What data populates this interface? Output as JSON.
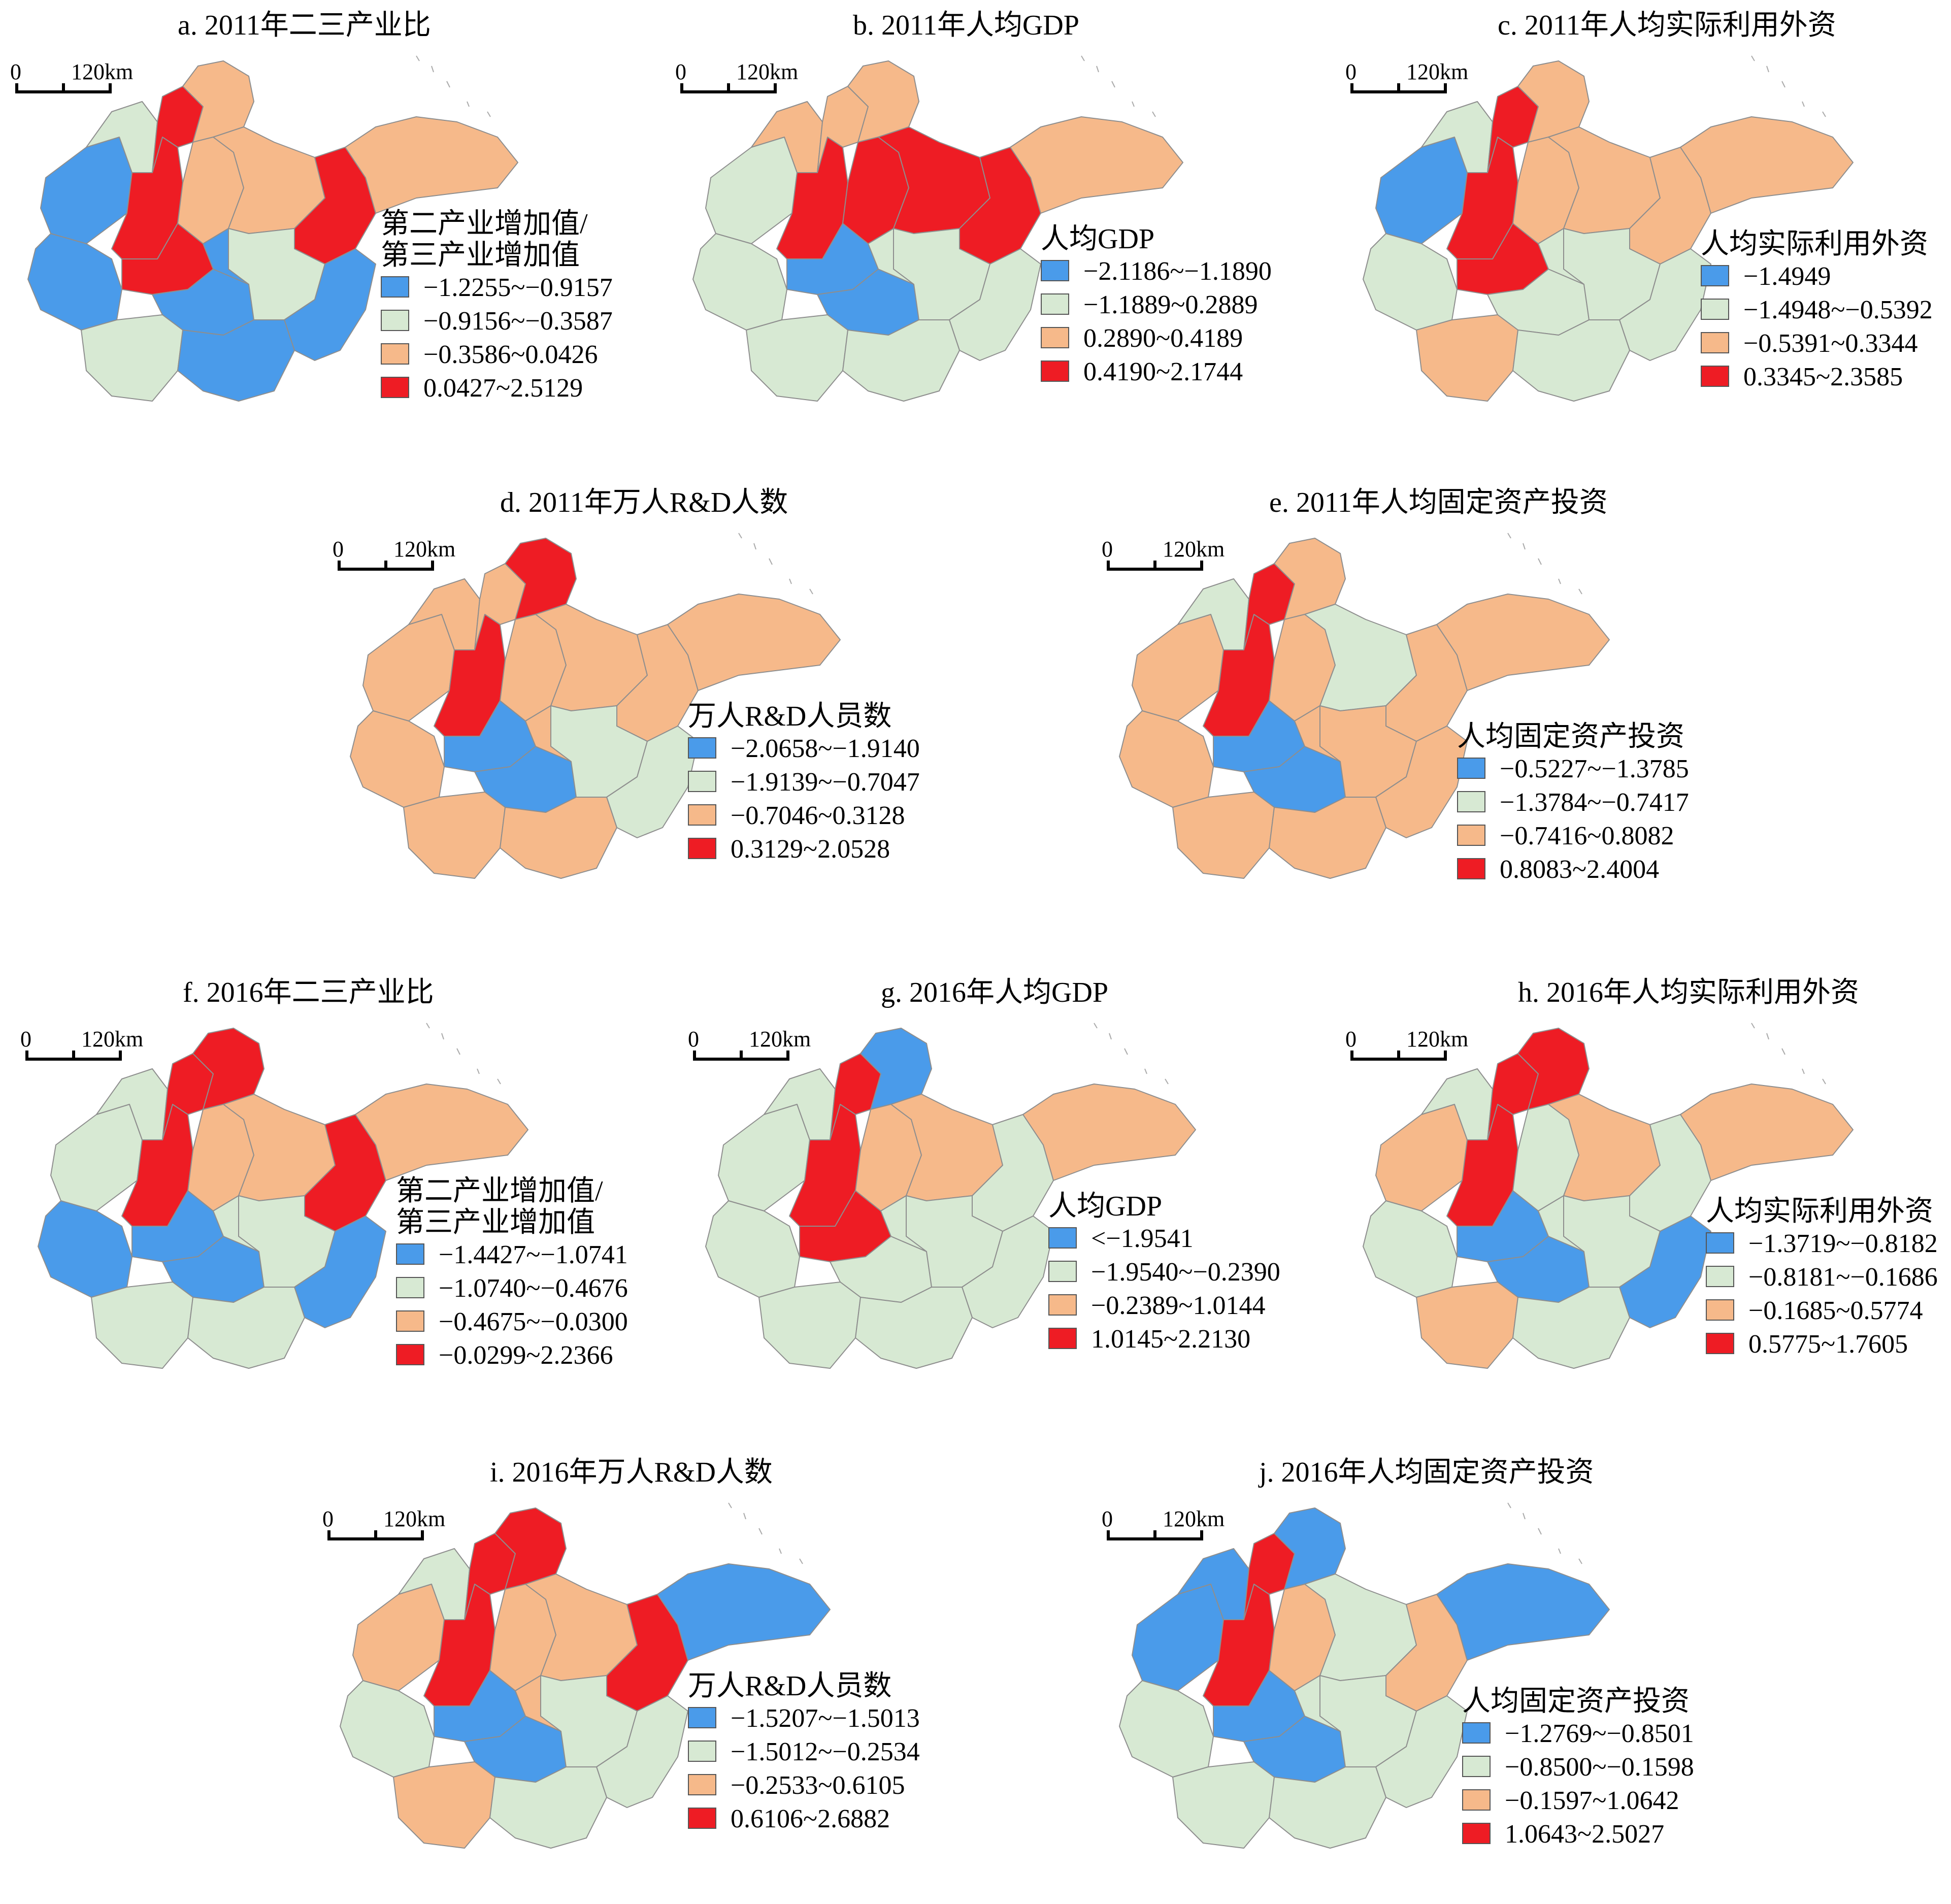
{
  "scale": {
    "zero": "0",
    "distance": "120km"
  },
  "colors": {
    "blue": "#4a9bea",
    "green": "#d7e9d3",
    "orange": "#f6b98a",
    "red": "#ee1c24"
  },
  "panels": [
    {
      "id": "a",
      "title": "a. 2011年二三产业比",
      "legend_title": [
        "第二产业增加值/",
        "第三产业增加值"
      ],
      "legend": [
        {
          "color": "#4a9bea",
          "range": "−1.2255~−0.9157"
        },
        {
          "color": "#d7e9d3",
          "range": "−0.9156~−0.3587"
        },
        {
          "color": "#f6b98a",
          "range": "−0.3586~0.0426"
        },
        {
          "color": "#ee1c24",
          "range": "0.0427~2.5129"
        }
      ],
      "region_classes": [
        "blue",
        "green",
        "blue",
        "red",
        "red",
        "orange",
        "red",
        "orange",
        "orange",
        "red",
        "blue",
        "green",
        "blue",
        "blue",
        "green",
        "blue",
        "orange"
      ]
    },
    {
      "id": "b",
      "title": "b. 2011年人均GDP",
      "legend_title": [
        "人均GDP"
      ],
      "legend": [
        {
          "color": "#4a9bea",
          "range": "−2.1186~−1.1890"
        },
        {
          "color": "#d7e9d3",
          "range": "−1.1889~0.2889"
        },
        {
          "color": "#f6b98a",
          "range": "0.2890~0.4189"
        },
        {
          "color": "#ee1c24",
          "range": "0.4190~2.1744"
        }
      ],
      "region_classes": [
        "green",
        "orange",
        "green",
        "red",
        "orange",
        "orange",
        "blue",
        "red",
        "red",
        "red",
        "blue",
        "green",
        "green",
        "green",
        "green",
        "green",
        "orange"
      ]
    },
    {
      "id": "c",
      "title": "c. 2011年人均实际利用外资",
      "legend_title": [
        "人均实际利用外资"
      ],
      "legend": [
        {
          "color": "#4a9bea",
          "range": "−1.4949"
        },
        {
          "color": "#d7e9d3",
          "range": "−1.4948~−0.5392"
        },
        {
          "color": "#f6b98a",
          "range": "−0.5391~0.3344"
        },
        {
          "color": "#ee1c24",
          "range": "0.3345~2.3585"
        }
      ],
      "region_classes": [
        "blue",
        "green",
        "green",
        "red",
        "red",
        "orange",
        "red",
        "orange",
        "orange",
        "orange",
        "green",
        "green",
        "green",
        "green",
        "orange",
        "green",
        "orange"
      ]
    },
    {
      "id": "d",
      "title": "d. 2011年万人R&D人数",
      "legend_title": [
        "万人R&D人员数"
      ],
      "legend": [
        {
          "color": "#4a9bea",
          "range": "−2.0658~−1.9140"
        },
        {
          "color": "#d7e9d3",
          "range": "−1.9139~−0.7047"
        },
        {
          "color": "#f6b98a",
          "range": "−0.7046~0.3128"
        },
        {
          "color": "#ee1c24",
          "range": "0.3129~2.0528"
        }
      ],
      "region_classes": [
        "orange",
        "orange",
        "orange",
        "red",
        "orange",
        "red",
        "blue",
        "orange",
        "orange",
        "orange",
        "blue",
        "green",
        "orange",
        "green",
        "orange",
        "orange",
        "orange"
      ]
    },
    {
      "id": "e",
      "title": "e. 2011年人均固定资产投资",
      "legend_title": [
        "人均固定资产投资"
      ],
      "legend": [
        {
          "color": "#4a9bea",
          "range": "−0.5227~−1.3785"
        },
        {
          "color": "#d7e9d3",
          "range": "−1.3784~−0.7417"
        },
        {
          "color": "#f6b98a",
          "range": "−0.7416~0.8082"
        },
        {
          "color": "#ee1c24",
          "range": "0.8083~2.4004"
        }
      ],
      "region_classes": [
        "orange",
        "green",
        "orange",
        "red",
        "red",
        "orange",
        "blue",
        "orange",
        "green",
        "orange",
        "blue",
        "orange",
        "orange",
        "orange",
        "orange",
        "orange",
        "orange"
      ]
    },
    {
      "id": "f",
      "title": "f. 2016年二三产业比",
      "legend_title": [
        "第二产业增加值/",
        "第三产业增加值"
      ],
      "legend": [
        {
          "color": "#4a9bea",
          "range": "−1.4427~−1.0741"
        },
        {
          "color": "#d7e9d3",
          "range": "−1.0740~−0.4676"
        },
        {
          "color": "#f6b98a",
          "range": "−0.4675~−0.0300"
        },
        {
          "color": "#ee1c24",
          "range": "−0.0299~2.2366"
        }
      ],
      "region_classes": [
        "green",
        "green",
        "blue",
        "red",
        "red",
        "red",
        "blue",
        "orange",
        "orange",
        "red",
        "blue",
        "green",
        "green",
        "blue",
        "green",
        "green",
        "orange"
      ]
    },
    {
      "id": "g",
      "title": "g. 2016年人均GDP",
      "legend_title": [
        "人均GDP"
      ],
      "legend": [
        {
          "color": "#4a9bea",
          "range": "<−1.9541"
        },
        {
          "color": "#d7e9d3",
          "range": "−1.9540~−0.2390"
        },
        {
          "color": "#f6b98a",
          "range": "−0.2389~1.0144"
        },
        {
          "color": "#ee1c24",
          "range": "1.0145~2.2130"
        }
      ],
      "region_classes": [
        "green",
        "green",
        "green",
        "red",
        "red",
        "blue",
        "red",
        "orange",
        "orange",
        "green",
        "green",
        "green",
        "green",
        "green",
        "green",
        "green",
        "orange"
      ]
    },
    {
      "id": "h",
      "title": "h. 2016年人均实际利用外资",
      "legend_title": [
        "人均实际利用外资"
      ],
      "legend": [
        {
          "color": "#4a9bea",
          "range": "−1.3719~−0.8182"
        },
        {
          "color": "#d7e9d3",
          "range": "−0.8181~−0.1686"
        },
        {
          "color": "#f6b98a",
          "range": "−0.1685~0.5774"
        },
        {
          "color": "#ee1c24",
          "range": "0.5775~1.7605"
        }
      ],
      "region_classes": [
        "orange",
        "green",
        "green",
        "red",
        "red",
        "red",
        "blue",
        "green",
        "orange",
        "green",
        "blue",
        "green",
        "green",
        "blue",
        "orange",
        "green",
        "orange"
      ]
    },
    {
      "id": "i",
      "title": "i. 2016年万人R&D人数",
      "legend_title": [
        "万人R&D人员数"
      ],
      "legend": [
        {
          "color": "#4a9bea",
          "range": "−1.5207~−1.5013"
        },
        {
          "color": "#d7e9d3",
          "range": "−1.5012~−0.2534"
        },
        {
          "color": "#f6b98a",
          "range": "−0.2533~0.6105"
        },
        {
          "color": "#ee1c24",
          "range": "0.6106~2.6882"
        }
      ],
      "region_classes": [
        "orange",
        "green",
        "green",
        "red",
        "red",
        "red",
        "blue",
        "orange",
        "orange",
        "red",
        "blue",
        "green",
        "orange",
        "green",
        "orange",
        "green",
        "blue"
      ]
    },
    {
      "id": "j",
      "title": "j. 2016年人均固定资产投资",
      "legend_title": [
        "人均固定资产投资"
      ],
      "legend": [
        {
          "color": "#4a9bea",
          "range": "−1.2769~−0.8501"
        },
        {
          "color": "#d7e9d3",
          "range": "−0.8500~−0.1598"
        },
        {
          "color": "#f6b98a",
          "range": "−0.1597~1.0642"
        },
        {
          "color": "#ee1c24",
          "range": "1.0643~2.5027"
        }
      ],
      "region_classes": [
        "blue",
        "blue",
        "green",
        "red",
        "red",
        "blue",
        "blue",
        "orange",
        "green",
        "orange",
        "blue",
        "green",
        "green",
        "green",
        "green",
        "green",
        "blue"
      ]
    }
  ]
}
